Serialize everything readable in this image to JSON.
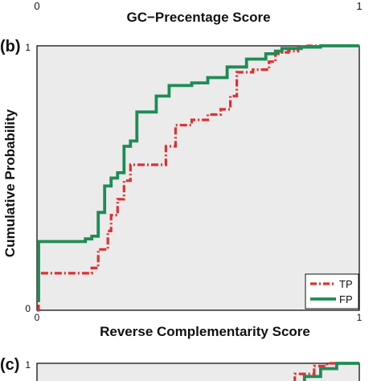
{
  "top_strip": {
    "tick_left": "0",
    "tick_right": "1",
    "xlabel": "GC−Precentage Score"
  },
  "chart_data": [
    {
      "type": "line",
      "panel_label": "(b)",
      "xlabel": "Reverse Complementarity Score",
      "ylabel": "Cumulative Probability",
      "xlim": [
        0,
        1
      ],
      "ylim": [
        0,
        1
      ],
      "x_ticks": [
        "0",
        "1"
      ],
      "y_ticks": [
        "0",
        "1"
      ],
      "grid": false,
      "background": "#ebebeb",
      "legend_position": "bottom-right",
      "series": [
        {
          "name": "TP",
          "color": "#e03030",
          "style": "dash-dot",
          "x": [
            0.0,
            0.005,
            0.005,
            0.17,
            0.17,
            0.19,
            0.19,
            0.22,
            0.22,
            0.23,
            0.23,
            0.25,
            0.25,
            0.27,
            0.27,
            0.29,
            0.29,
            0.4,
            0.4,
            0.43,
            0.43,
            0.48,
            0.48,
            0.53,
            0.53,
            0.57,
            0.57,
            0.6,
            0.6,
            0.62,
            0.62,
            0.67,
            0.67,
            0.72,
            0.72,
            0.74,
            0.74,
            0.76,
            0.76,
            0.78,
            0.78,
            0.81,
            0.81,
            0.84,
            0.84,
            1.0
          ],
          "y": [
            0.0,
            0.0,
            0.14,
            0.14,
            0.16,
            0.16,
            0.23,
            0.23,
            0.3,
            0.3,
            0.36,
            0.36,
            0.42,
            0.42,
            0.49,
            0.49,
            0.55,
            0.55,
            0.62,
            0.62,
            0.7,
            0.7,
            0.72,
            0.72,
            0.74,
            0.74,
            0.76,
            0.76,
            0.81,
            0.81,
            0.9,
            0.9,
            0.91,
            0.91,
            0.94,
            0.94,
            0.97,
            0.97,
            0.975,
            0.975,
            0.98,
            0.98,
            0.995,
            0.995,
            1.0,
            1.0
          ]
        },
        {
          "name": "FP",
          "color": "#1e8c55",
          "style": "solid",
          "x": [
            0.0,
            0.005,
            0.005,
            0.15,
            0.15,
            0.17,
            0.17,
            0.19,
            0.19,
            0.21,
            0.21,
            0.23,
            0.23,
            0.25,
            0.25,
            0.27,
            0.27,
            0.29,
            0.29,
            0.31,
            0.31,
            0.37,
            0.37,
            0.41,
            0.41,
            0.48,
            0.48,
            0.53,
            0.53,
            0.59,
            0.59,
            0.65,
            0.65,
            0.71,
            0.71,
            0.74,
            0.74,
            0.76,
            0.76,
            0.82,
            0.82,
            0.88,
            0.88,
            1.0
          ],
          "y": [
            0.04,
            0.04,
            0.26,
            0.26,
            0.27,
            0.27,
            0.28,
            0.28,
            0.37,
            0.37,
            0.47,
            0.47,
            0.5,
            0.5,
            0.52,
            0.52,
            0.62,
            0.62,
            0.64,
            0.64,
            0.75,
            0.75,
            0.81,
            0.81,
            0.85,
            0.85,
            0.86,
            0.86,
            0.88,
            0.88,
            0.92,
            0.92,
            0.95,
            0.95,
            0.97,
            0.97,
            0.98,
            0.98,
            0.99,
            0.99,
            0.995,
            0.995,
            1.0,
            1.0
          ]
        }
      ]
    },
    {
      "type": "line",
      "panel_label": "(c)",
      "xlim": [
        0,
        1
      ],
      "ylim": [
        0,
        1
      ],
      "y_ticks": [
        "1"
      ],
      "background": "#ebebeb",
      "series": [
        {
          "name": "TP",
          "color": "#e03030",
          "style": "dash-dot",
          "x": [
            0.76,
            0.8,
            0.8,
            0.86,
            0.86,
            0.9,
            0.9,
            1.0
          ],
          "y": [
            0.92,
            0.92,
            0.96,
            0.96,
            0.99,
            0.99,
            1.0,
            1.0
          ]
        },
        {
          "name": "FP",
          "color": "#1e8c55",
          "style": "solid",
          "x": [
            0.78,
            0.83,
            0.83,
            0.88,
            0.88,
            0.93,
            0.93,
            1.0
          ],
          "y": [
            0.9,
            0.9,
            0.95,
            0.95,
            0.98,
            0.98,
            1.0,
            1.0
          ]
        }
      ]
    }
  ]
}
